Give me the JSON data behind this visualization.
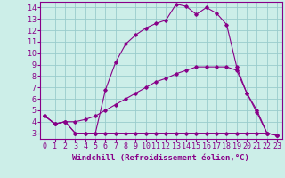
{
  "xlabel": "Windchill (Refroidissement éolien,°C)",
  "bg_color": "#cceee8",
  "line_color": "#880088",
  "grid_color": "#99cccc",
  "xlim": [
    -0.5,
    23.5
  ],
  "ylim": [
    2.5,
    14.5
  ],
  "xticks": [
    0,
    1,
    2,
    3,
    4,
    5,
    6,
    7,
    8,
    9,
    10,
    11,
    12,
    13,
    14,
    15,
    16,
    17,
    18,
    19,
    20,
    21,
    22,
    23
  ],
  "yticks": [
    3,
    4,
    5,
    6,
    7,
    8,
    9,
    10,
    11,
    12,
    13,
    14
  ],
  "line1_x": [
    0,
    1,
    2,
    3,
    4,
    5,
    6,
    7,
    8,
    9,
    10,
    11,
    12,
    13,
    14,
    15,
    16,
    17,
    18,
    19,
    20,
    21,
    22,
    23
  ],
  "line1_y": [
    4.5,
    3.8,
    4.0,
    3.0,
    3.0,
    3.0,
    6.8,
    9.2,
    10.8,
    11.6,
    12.2,
    12.6,
    12.9,
    14.3,
    14.1,
    13.4,
    14.0,
    13.5,
    12.5,
    8.8,
    6.5,
    5.0,
    3.0,
    2.8
  ],
  "line2_x": [
    0,
    1,
    2,
    3,
    4,
    5,
    6,
    7,
    8,
    9,
    10,
    11,
    12,
    13,
    14,
    15,
    16,
    17,
    18,
    19,
    20,
    21,
    22,
    23
  ],
  "line2_y": [
    4.5,
    3.8,
    4.0,
    4.0,
    4.2,
    4.5,
    5.0,
    5.5,
    6.0,
    6.5,
    7.0,
    7.5,
    7.8,
    8.2,
    8.5,
    8.8,
    8.8,
    8.8,
    8.8,
    8.5,
    6.5,
    4.8,
    3.0,
    2.8
  ],
  "line3_x": [
    0,
    1,
    2,
    3,
    4,
    5,
    6,
    7,
    8,
    9,
    10,
    11,
    12,
    13,
    14,
    15,
    16,
    17,
    18,
    19,
    20,
    21,
    22,
    23
  ],
  "line3_y": [
    4.5,
    3.8,
    4.0,
    3.0,
    3.0,
    3.0,
    3.0,
    3.0,
    3.0,
    3.0,
    3.0,
    3.0,
    3.0,
    3.0,
    3.0,
    3.0,
    3.0,
    3.0,
    3.0,
    3.0,
    3.0,
    3.0,
    3.0,
    2.8
  ],
  "tick_fontsize": 6,
  "xlabel_fontsize": 6.5
}
